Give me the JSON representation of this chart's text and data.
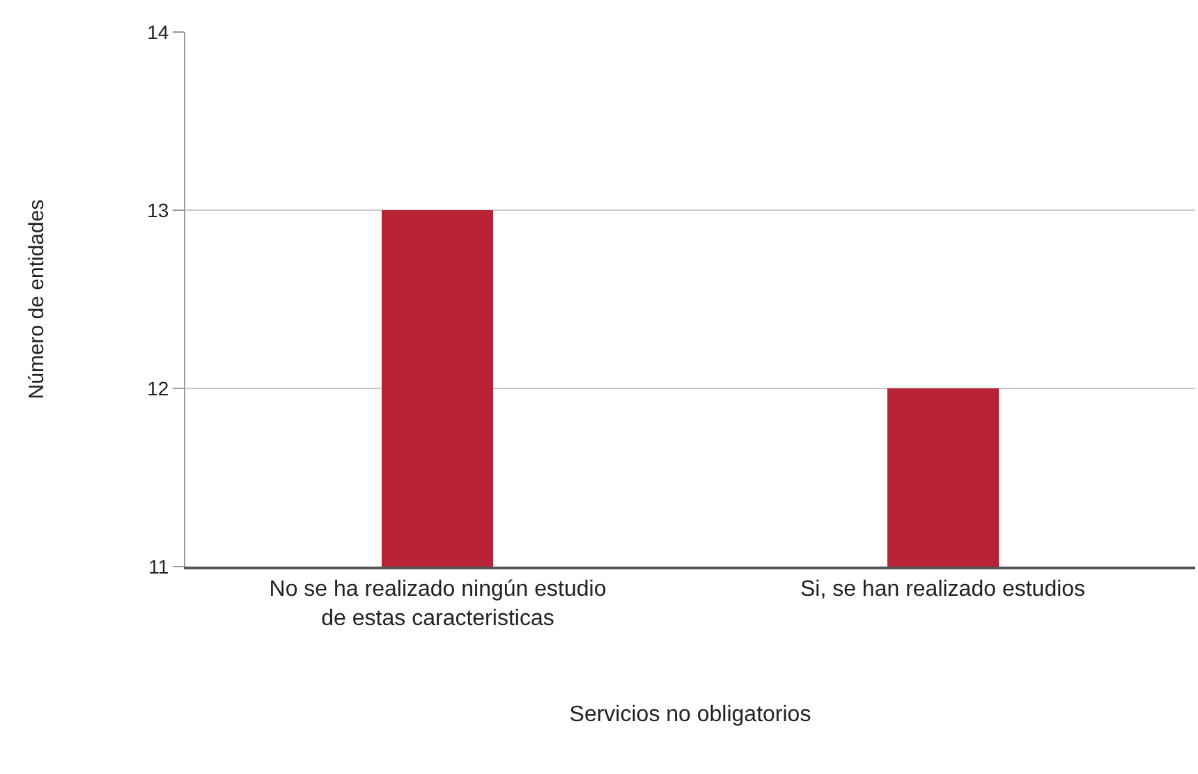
{
  "chart_data": {
    "type": "bar",
    "xlabel": "Servicios no obligatorios",
    "ylabel": "Número de entidades",
    "categories": [
      "No se ha realizado ningún estudio de estas caracteristicas",
      "Si, se han realizado estudios"
    ],
    "values": [
      13,
      12
    ],
    "color": "#b82235",
    "ylim": [
      11,
      14
    ],
    "yticks": [
      11,
      12,
      13,
      14
    ],
    "grid": "y"
  }
}
